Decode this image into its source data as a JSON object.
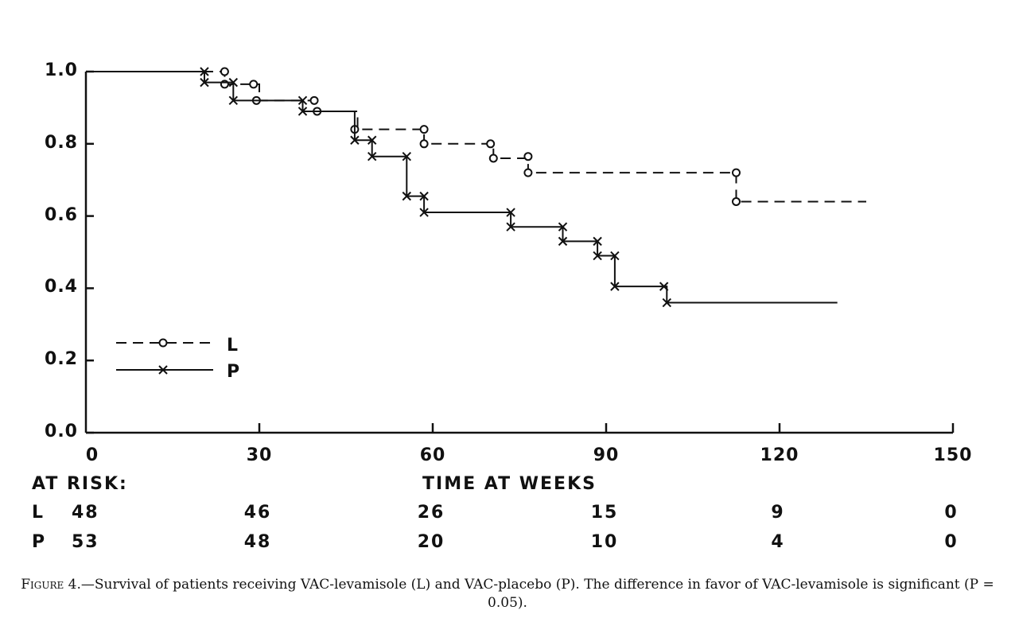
{
  "chart_data": {
    "type": "line",
    "title": "",
    "xlabel": "TIME AT WEEKS",
    "ylabel": "",
    "xlim": [
      0,
      150
    ],
    "ylim": [
      0,
      1.0
    ],
    "x_ticks": [
      "0",
      "30",
      "60",
      "90",
      "120",
      "150"
    ],
    "y_ticks": [
      "1.0",
      "0.8",
      "0.6",
      "0.4",
      "0.2",
      "0.0"
    ],
    "grid": false,
    "legend_position": "lower-left",
    "series": [
      {
        "name": "L",
        "style": "dashed",
        "marker": "circle",
        "color": "#111111",
        "steps": [
          [
            0,
            1.0
          ],
          [
            24,
            0.965
          ],
          [
            30,
            0.92
          ],
          [
            40,
            0.89
          ],
          [
            47,
            0.84
          ],
          [
            58.5,
            0.8
          ],
          [
            70.5,
            0.76
          ],
          [
            76.5,
            0.72
          ],
          [
            112.5,
            0.64
          ],
          [
            135,
            0.64
          ]
        ],
        "markers": [
          [
            24,
            1.0
          ],
          [
            24,
            0.965
          ],
          [
            29,
            0.965
          ],
          [
            29.5,
            0.92
          ],
          [
            39.5,
            0.92
          ],
          [
            40,
            0.89
          ],
          [
            46.5,
            0.84
          ],
          [
            58.5,
            0.84
          ],
          [
            58.5,
            0.8
          ],
          [
            70,
            0.8
          ],
          [
            70.5,
            0.76
          ],
          [
            76.5,
            0.765
          ],
          [
            76.5,
            0.72
          ],
          [
            112.5,
            0.72
          ],
          [
            112.5,
            0.64
          ]
        ]
      },
      {
        "name": "P",
        "style": "solid",
        "marker": "x",
        "color": "#111111",
        "steps": [
          [
            0,
            1.0
          ],
          [
            20.5,
            0.97
          ],
          [
            25.5,
            0.92
          ],
          [
            37.5,
            0.89
          ],
          [
            46.5,
            0.81
          ],
          [
            49.5,
            0.765
          ],
          [
            55.5,
            0.655
          ],
          [
            58.5,
            0.61
          ],
          [
            73.5,
            0.57
          ],
          [
            82.5,
            0.53
          ],
          [
            88.5,
            0.49
          ],
          [
            91.5,
            0.405
          ],
          [
            100.5,
            0.36
          ],
          [
            130,
            0.36
          ]
        ],
        "markers": [
          [
            20.5,
            1.0
          ],
          [
            20.5,
            0.97
          ],
          [
            25.5,
            0.97
          ],
          [
            25.5,
            0.92
          ],
          [
            37.5,
            0.92
          ],
          [
            37.5,
            0.89
          ],
          [
            46.5,
            0.81
          ],
          [
            49.5,
            0.81
          ],
          [
            49.5,
            0.765
          ],
          [
            55.5,
            0.765
          ],
          [
            55.5,
            0.655
          ],
          [
            58.5,
            0.655
          ],
          [
            58.5,
            0.61
          ],
          [
            73.5,
            0.61
          ],
          [
            73.5,
            0.57
          ],
          [
            82.5,
            0.57
          ],
          [
            82.5,
            0.53
          ],
          [
            88.5,
            0.53
          ],
          [
            88.5,
            0.49
          ],
          [
            91.5,
            0.49
          ],
          [
            91.5,
            0.405
          ],
          [
            100,
            0.405
          ],
          [
            100.5,
            0.36
          ]
        ]
      }
    ],
    "at_risk": {
      "title": "AT RISK:",
      "rows": [
        {
          "label": "L",
          "values": [
            "48",
            "46",
            "26",
            "15",
            "9",
            "0"
          ]
        },
        {
          "label": "P",
          "values": [
            "53",
            "48",
            "20",
            "10",
            "4",
            "0"
          ]
        }
      ]
    },
    "legend": [
      {
        "label": "L",
        "style": "dashed",
        "marker": "circle"
      },
      {
        "label": "P",
        "style": "solid",
        "marker": "x"
      }
    ]
  },
  "caption": {
    "lead": "Figure 4.",
    "text": "—Survival of patients receiving VAC-levamisole (L) and VAC-placebo (P). The difference in favor of VAC-levamisole is significant (P = 0.05)."
  }
}
